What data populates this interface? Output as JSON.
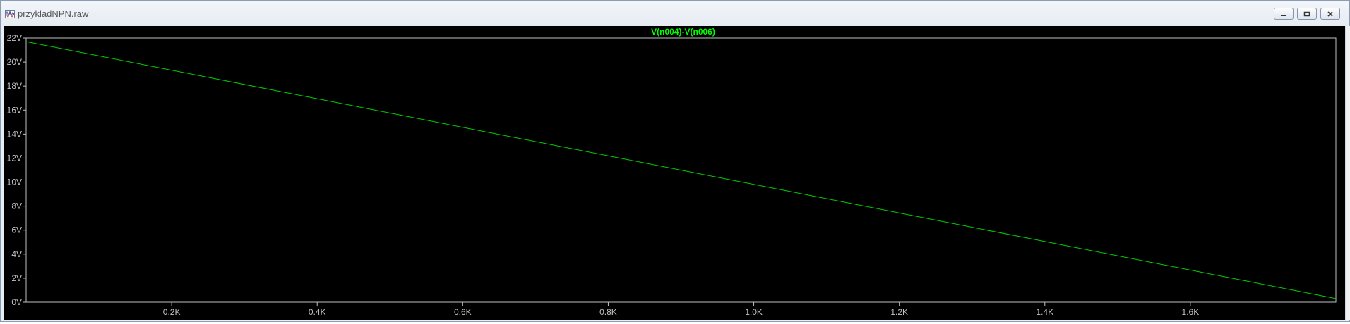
{
  "window": {
    "title": "przykladNPN.raw",
    "controls": [
      "minimize",
      "restore",
      "close"
    ]
  },
  "colors": {
    "trace": "#00d000",
    "trace_label": "#00ff00",
    "axis_text": "#c0c0c0",
    "frame": "#c0c0c0",
    "background": "#000000"
  },
  "chart_data": {
    "type": "line",
    "title": "V(n004)-V(n006)",
    "x_ticks": [
      "0.2K",
      "0.4K",
      "0.6K",
      "0.8K",
      "1.0K",
      "1.2K",
      "1.4K",
      "1.6K"
    ],
    "y_ticks": [
      "0V",
      "2V",
      "4V",
      "6V",
      "8V",
      "10V",
      "12V",
      "14V",
      "16V",
      "18V",
      "20V",
      "22V"
    ],
    "xlim": [
      0,
      1800
    ],
    "ylim": [
      0,
      22
    ],
    "grid": false,
    "series": [
      {
        "name": "V(n004)-V(n006)",
        "x": [
          0,
          1800
        ],
        "y": [
          21.7,
          0.3
        ]
      }
    ]
  }
}
